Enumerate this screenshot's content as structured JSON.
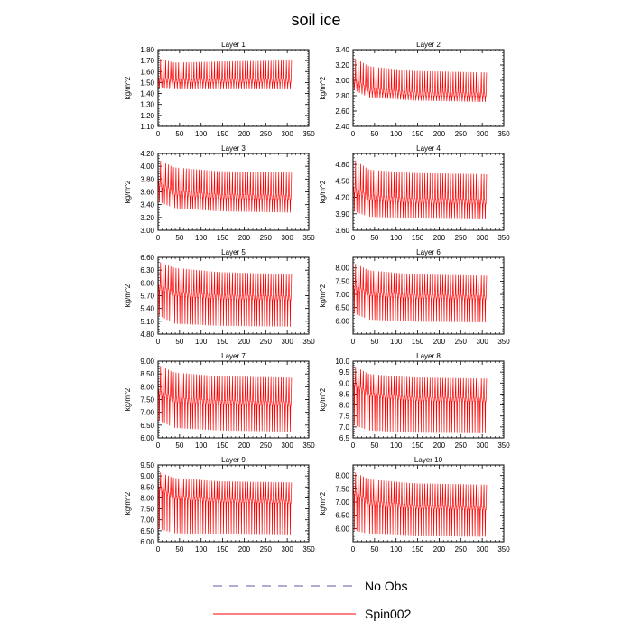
{
  "figure": {
    "title": "soil ice"
  },
  "legend": [
    {
      "label": "No Obs",
      "color": "#5b5ba8",
      "dash": "dashed"
    },
    {
      "label": "Spin002",
      "color": "#ff0000",
      "dash": "solid"
    }
  ],
  "chart_data": [
    {
      "type": "line",
      "title": "Layer 1",
      "ylabel": "kg/m^2",
      "xlim": [
        0,
        350
      ],
      "x_ticks": [
        "0",
        "50",
        "100",
        "150",
        "200",
        "250",
        "300",
        "350"
      ],
      "ylim": [
        1.1,
        1.8
      ],
      "y_ticks": [
        "1.10",
        "1.20",
        "1.30",
        "1.40",
        "1.50",
        "1.60",
        "1.70",
        "1.80"
      ],
      "series": [
        {
          "name": "Spin002",
          "x_end": 310,
          "cycles": 52,
          "start_value": 1.15,
          "upper_envelope": [
            1.72,
            1.68,
            1.69,
            1.7
          ],
          "lower_envelope": [
            1.45,
            1.44,
            1.44,
            1.44
          ],
          "mid_band": [
            1.51,
            1.5,
            1.5,
            1.5
          ]
        }
      ]
    },
    {
      "type": "line",
      "title": "Layer 2",
      "ylabel": "kg/m^2",
      "xlim": [
        0,
        350
      ],
      "x_ticks": [
        "0",
        "50",
        "100",
        "150",
        "200",
        "250",
        "300",
        "350"
      ],
      "ylim": [
        2.4,
        3.4
      ],
      "y_ticks": [
        "2.40",
        "2.60",
        "2.80",
        "3.00",
        "3.20",
        "3.40"
      ],
      "series": [
        {
          "name": "Spin002",
          "x_end": 310,
          "cycles": 52,
          "start_value": 2.45,
          "upper_envelope": [
            3.3,
            3.18,
            3.12,
            3.1
          ],
          "lower_envelope": [
            2.88,
            2.78,
            2.74,
            2.72
          ],
          "mid_band": [
            2.98,
            2.85,
            2.8,
            2.79
          ]
        }
      ]
    },
    {
      "type": "line",
      "title": "Layer 3",
      "ylabel": "kg/m^2",
      "xlim": [
        0,
        350
      ],
      "x_ticks": [
        "0",
        "50",
        "100",
        "150",
        "200",
        "250",
        "300",
        "350"
      ],
      "ylim": [
        3.0,
        4.2
      ],
      "y_ticks": [
        "3.00",
        "3.20",
        "3.40",
        "3.60",
        "3.80",
        "4.00",
        "4.20"
      ],
      "series": [
        {
          "name": "Spin002",
          "x_end": 310,
          "cycles": 52,
          "start_value": 3.1,
          "upper_envelope": [
            4.1,
            3.98,
            3.92,
            3.9
          ],
          "lower_envelope": [
            3.45,
            3.35,
            3.3,
            3.28
          ],
          "mid_band": [
            3.7,
            3.55,
            3.5,
            3.48
          ]
        }
      ]
    },
    {
      "type": "line",
      "title": "Layer 4",
      "ylabel": "kg/m^2",
      "xlim": [
        0,
        350
      ],
      "x_ticks": [
        "0",
        "50",
        "100",
        "150",
        "200",
        "250",
        "300",
        "350"
      ],
      "ylim": [
        3.6,
        5.0
      ],
      "y_ticks": [
        "3.60",
        "3.90",
        "4.20",
        "4.50",
        "4.80"
      ],
      "series": [
        {
          "name": "Spin002",
          "x_end": 310,
          "cycles": 52,
          "start_value": 3.7,
          "upper_envelope": [
            4.9,
            4.7,
            4.64,
            4.62
          ],
          "lower_envelope": [
            3.95,
            3.85,
            3.82,
            3.8
          ],
          "mid_band": [
            4.3,
            4.15,
            4.1,
            4.08
          ]
        }
      ]
    },
    {
      "type": "line",
      "title": "Layer 5",
      "ylabel": "kg/m^2",
      "xlim": [
        0,
        350
      ],
      "x_ticks": [
        "0",
        "50",
        "100",
        "150",
        "200",
        "250",
        "300",
        "350"
      ],
      "ylim": [
        4.8,
        6.6
      ],
      "y_ticks": [
        "4.80",
        "5.10",
        "5.40",
        "5.70",
        "6.00",
        "6.30",
        "6.60"
      ],
      "series": [
        {
          "name": "Spin002",
          "x_end": 310,
          "cycles": 52,
          "start_value": 5.4,
          "upper_envelope": [
            6.5,
            6.35,
            6.25,
            6.2
          ],
          "lower_envelope": [
            5.25,
            5.05,
            5.0,
            4.98
          ],
          "mid_band": [
            5.85,
            5.7,
            5.62,
            5.6
          ]
        }
      ]
    },
    {
      "type": "line",
      "title": "Layer 6",
      "ylabel": "kg/m^2",
      "xlim": [
        0,
        350
      ],
      "x_ticks": [
        "0",
        "50",
        "100",
        "150",
        "200",
        "250",
        "300",
        "350"
      ],
      "ylim": [
        5.5,
        8.4
      ],
      "y_ticks": [
        "6.00",
        "6.50",
        "7.00",
        "7.50",
        "8.00"
      ],
      "series": [
        {
          "name": "Spin002",
          "x_end": 310,
          "cycles": 52,
          "start_value": 6.4,
          "upper_envelope": [
            8.2,
            7.9,
            7.75,
            7.7
          ],
          "lower_envelope": [
            6.3,
            6.05,
            5.98,
            5.95
          ],
          "mid_band": [
            7.2,
            6.95,
            6.85,
            6.82
          ]
        }
      ]
    },
    {
      "type": "line",
      "title": "Layer 7",
      "ylabel": "kg/m^2",
      "xlim": [
        0,
        350
      ],
      "x_ticks": [
        "0",
        "50",
        "100",
        "150",
        "200",
        "250",
        "300",
        "350"
      ],
      "ylim": [
        6.0,
        9.0
      ],
      "y_ticks": [
        "6.00",
        "6.50",
        "7.00",
        "7.50",
        "8.00",
        "8.50",
        "9.00"
      ],
      "series": [
        {
          "name": "Spin002",
          "x_end": 310,
          "cycles": 52,
          "start_value": 6.8,
          "upper_envelope": [
            8.85,
            8.55,
            8.4,
            8.35
          ],
          "lower_envelope": [
            6.7,
            6.4,
            6.3,
            6.25
          ],
          "mid_band": [
            7.7,
            7.4,
            7.3,
            7.25
          ]
        }
      ]
    },
    {
      "type": "line",
      "title": "Layer 8",
      "ylabel": "kg/m^2",
      "xlim": [
        0,
        350
      ],
      "x_ticks": [
        "0",
        "50",
        "100",
        "150",
        "200",
        "250",
        "300",
        "350"
      ],
      "ylim": [
        6.5,
        10.0
      ],
      "y_ticks": [
        "6.5",
        "7.0",
        "7.5",
        "8.0",
        "8.5",
        "9.0",
        "9.5",
        "10.0"
      ],
      "series": [
        {
          "name": "Spin002",
          "x_end": 310,
          "cycles": 52,
          "start_value": 7.4,
          "upper_envelope": [
            9.8,
            9.4,
            9.25,
            9.2
          ],
          "lower_envelope": [
            7.1,
            6.85,
            6.75,
            6.72
          ],
          "mid_band": [
            8.9,
            8.4,
            8.2,
            8.15
          ]
        }
      ]
    },
    {
      "type": "line",
      "title": "Layer 9",
      "ylabel": "kg/m^2",
      "xlim": [
        0,
        350
      ],
      "x_ticks": [
        "0",
        "50",
        "100",
        "150",
        "200",
        "250",
        "300",
        "350"
      ],
      "ylim": [
        6.0,
        9.5
      ],
      "y_ticks": [
        "6.00",
        "6.50",
        "7.00",
        "7.50",
        "8.00",
        "8.50",
        "9.00",
        "9.50"
      ],
      "series": [
        {
          "name": "Spin002",
          "x_end": 310,
          "cycles": 52,
          "start_value": 7.0,
          "upper_envelope": [
            9.2,
            8.9,
            8.75,
            8.7
          ],
          "lower_envelope": [
            6.6,
            6.4,
            6.35,
            6.3
          ],
          "mid_band": [
            8.4,
            7.95,
            7.8,
            7.75
          ]
        }
      ]
    },
    {
      "type": "line",
      "title": "Layer 10",
      "ylabel": "kg/m^2",
      "xlim": [
        0,
        350
      ],
      "x_ticks": [
        "0",
        "50",
        "100",
        "150",
        "200",
        "250",
        "300",
        "350"
      ],
      "ylim": [
        5.5,
        8.4
      ],
      "y_ticks": [
        "6.00",
        "6.50",
        "7.00",
        "7.50",
        "8.00"
      ],
      "series": [
        {
          "name": "Spin002",
          "x_end": 310,
          "cycles": 52,
          "start_value": 6.5,
          "upper_envelope": [
            8.15,
            7.85,
            7.7,
            7.65
          ],
          "lower_envelope": [
            5.95,
            5.8,
            5.72,
            5.7
          ],
          "mid_band": [
            7.3,
            6.9,
            6.75,
            6.7
          ]
        }
      ]
    }
  ]
}
